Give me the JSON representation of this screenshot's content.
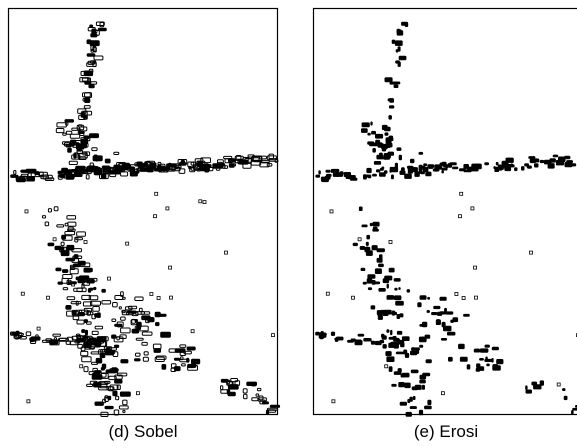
{
  "figures": [
    {
      "caption": "(d) Sobel"
    },
    {
      "caption": "(e) Erosi"
    }
  ]
}
